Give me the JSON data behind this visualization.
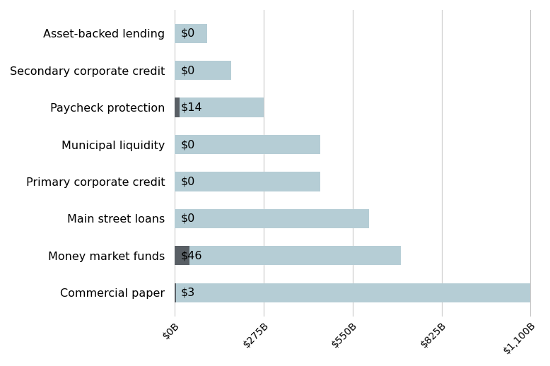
{
  "categories": [
    "Asset-backed lending",
    "Secondary corporate credit",
    "Paycheck protection",
    "Municipal liquidity",
    "Primary corporate credit",
    "Main street loans",
    "Money market funds",
    "Commercial paper"
  ],
  "capacity_values": [
    100,
    175,
    275,
    450,
    450,
    600,
    700,
    1100
  ],
  "actual_values": [
    0,
    0,
    14,
    0,
    0,
    0,
    46,
    3
  ],
  "labels": [
    "$0",
    "$0",
    "$14",
    "$0",
    "$0",
    "$0",
    "$46",
    "$3"
  ],
  "bar_color_light": "#b5cdd5",
  "bar_color_dark": "#595f65",
  "x_ticks": [
    0,
    275,
    550,
    825,
    1100
  ],
  "x_tick_labels": [
    "$0B",
    "$275B",
    "$550B",
    "$825B",
    "$1,100B"
  ],
  "xlim": [
    0,
    1130
  ],
  "background_color": "#ffffff",
  "grid_color": "#c8c8c8",
  "label_fontsize": 11.5,
  "tick_fontsize": 10,
  "figsize": [
    7.78,
    5.18
  ],
  "dpi": 100,
  "bar_height": 0.52
}
